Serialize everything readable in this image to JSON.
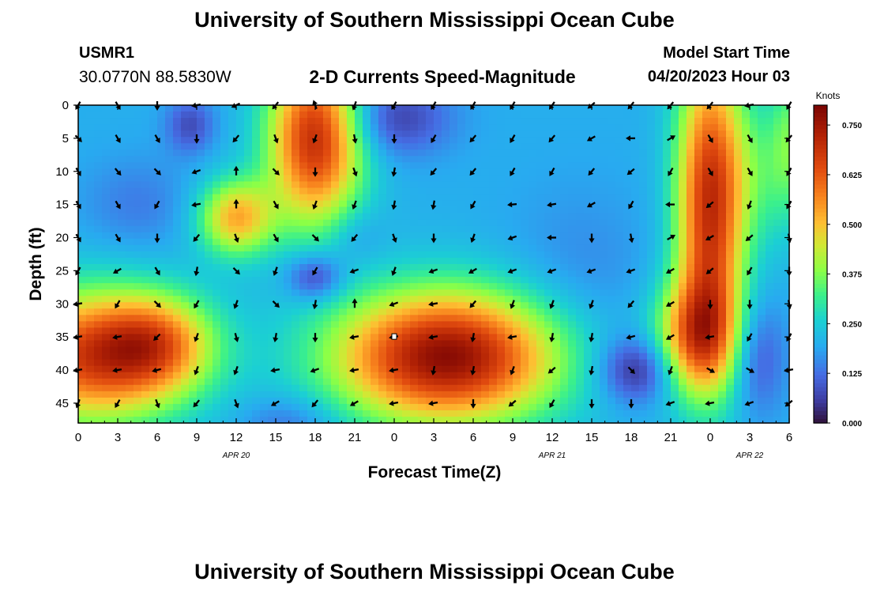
{
  "header": {
    "title": "University of Southern Mississippi Ocean Cube",
    "station_id": "USMR1",
    "station_coords": "30.0770N  88.5830W",
    "plot_title": "2-D Currents Speed-Magnitude",
    "model_start_label": "Model Start Time",
    "model_start_time": "04/20/2023 Hour 03"
  },
  "footer": {
    "title": "University of Southern Mississippi Ocean Cube"
  },
  "chart_data": {
    "type": "heatmap",
    "title": "2-D Currents Speed-Magnitude",
    "xlabel": "Forecast Time(Z)",
    "ylabel": "Depth (ft)",
    "xlim": [
      0,
      54
    ],
    "ylim": [
      0,
      48
    ],
    "x_tick_values": [
      0,
      3,
      6,
      9,
      12,
      15,
      18,
      21,
      24,
      27,
      30,
      33,
      36,
      39,
      42,
      45,
      48,
      51,
      54
    ],
    "x_tick_labels": [
      "0",
      "3",
      "6",
      "9",
      "12",
      "15",
      "18",
      "21",
      "0",
      "3",
      "6",
      "9",
      "12",
      "15",
      "18",
      "21",
      "0",
      "3",
      "6"
    ],
    "y_tick_values": [
      0,
      5,
      10,
      15,
      20,
      25,
      30,
      35,
      40,
      45
    ],
    "y_tick_labels": [
      "0",
      "5",
      "10",
      "15",
      "20",
      "25",
      "30",
      "35",
      "40",
      "45"
    ],
    "date_labels": [
      {
        "label": "APR 20",
        "x": 12
      },
      {
        "label": "APR 21",
        "x": 36
      },
      {
        "label": "APR 22",
        "x": 51
      }
    ],
    "colorbar": {
      "label": "Knots",
      "range": [
        0,
        0.8
      ],
      "ticks": [
        0.0,
        0.125,
        0.25,
        0.375,
        0.5,
        0.625,
        0.75
      ],
      "tick_labels": [
        "0.000",
        "0.125",
        "0.250",
        "0.375",
        "0.500",
        "0.625",
        "0.750"
      ]
    },
    "speed_features": [
      {
        "x": 1,
        "depth": 38,
        "sx": 5,
        "sy": 7,
        "value": 0.45
      },
      {
        "x": 6,
        "depth": 36,
        "sx": 3,
        "sy": 5,
        "value": 0.25
      },
      {
        "x": 18,
        "depth": 5,
        "sx": 2.5,
        "sy": 9,
        "value": 0.5
      },
      {
        "x": 12,
        "depth": 17,
        "sx": 2,
        "sy": 4,
        "value": 0.32
      },
      {
        "x": 28,
        "depth": 38,
        "sx": 6,
        "sy": 7,
        "value": 0.58
      },
      {
        "x": 48,
        "depth": 15,
        "sx": 1.8,
        "sy": 16,
        "value": 0.5
      },
      {
        "x": 47,
        "depth": 35,
        "sx": 2.2,
        "sy": 6,
        "value": 0.35
      },
      {
        "x": 52,
        "depth": 10,
        "sx": 2,
        "sy": 8,
        "value": 0.1
      },
      {
        "x": 54,
        "depth": 5,
        "sx": 1,
        "sy": 8,
        "value": 0.12
      },
      {
        "x": 8.5,
        "depth": 3,
        "sx": 1.3,
        "sy": 3,
        "value": -0.12
      },
      {
        "x": 24,
        "depth": 2,
        "sx": 3,
        "sy": 4,
        "value": -0.14
      },
      {
        "x": 42.5,
        "depth": 40,
        "sx": 2,
        "sy": 3.5,
        "value": -0.18
      },
      {
        "x": 18,
        "depth": 26,
        "sx": 1.5,
        "sy": 2.5,
        "value": -0.16
      },
      {
        "x": 51.5,
        "depth": 38,
        "sx": 1.5,
        "sy": 6,
        "value": -0.12
      },
      {
        "x": 16,
        "depth": 48,
        "sx": 2.5,
        "sy": 3,
        "value": -0.08
      },
      {
        "x": 38,
        "depth": 27,
        "sx": 4,
        "sy": 10,
        "value": -0.05
      },
      {
        "x": 4.5,
        "depth": 15,
        "sx": 3,
        "sy": 5,
        "value": -0.06
      },
      {
        "x": 21,
        "depth": 20,
        "sx": 1.5,
        "sy": 3,
        "value": -0.05
      }
    ],
    "base_speed": 0.2,
    "vector_x": [
      0,
      3,
      6,
      9,
      12,
      15,
      18,
      21,
      24,
      27,
      30,
      33,
      36,
      39,
      42,
      45,
      48,
      51,
      54
    ],
    "vector_depths": [
      0,
      5,
      10,
      15,
      20,
      25,
      30,
      35,
      40,
      45
    ],
    "vector_dirs": [
      [
        120,
        60,
        90,
        170,
        155,
        130,
        250,
        110,
        120,
        120,
        120,
        120,
        125,
        140,
        130,
        130,
        130,
        170,
        120
      ],
      [
        45,
        60,
        60,
        90,
        130,
        70,
        110,
        80,
        90,
        120,
        130,
        120,
        130,
        150,
        180,
        330,
        60,
        60,
        130
      ],
      [
        60,
        50,
        45,
        160,
        270,
        45,
        90,
        70,
        100,
        130,
        130,
        120,
        120,
        130,
        140,
        120,
        60,
        60,
        120
      ],
      [
        60,
        60,
        120,
        170,
        270,
        60,
        110,
        110,
        100,
        100,
        120,
        175,
        170,
        150,
        120,
        180,
        140,
        110,
        120
      ],
      [
        60,
        60,
        90,
        130,
        70,
        60,
        45,
        130,
        70,
        90,
        110,
        160,
        180,
        90,
        80,
        330,
        150,
        140,
        80
      ],
      [
        120,
        150,
        60,
        100,
        45,
        110,
        120,
        160,
        110,
        160,
        150,
        160,
        160,
        160,
        160,
        150,
        140,
        120,
        90
      ],
      [
        170,
        120,
        45,
        120,
        110,
        45,
        100,
        270,
        160,
        170,
        130,
        110,
        110,
        110,
        130,
        150,
        90,
        90,
        80
      ],
      [
        170,
        170,
        135,
        110,
        75,
        100,
        90,
        170,
        170,
        170,
        100,
        170,
        100,
        100,
        165,
        150,
        170,
        120,
        120
      ],
      [
        170,
        170,
        165,
        110,
        110,
        170,
        160,
        170,
        170,
        100,
        100,
        110,
        140,
        100,
        45,
        110,
        30,
        30,
        170
      ],
      [
        110,
        120,
        70,
        130,
        70,
        150,
        130,
        150,
        170,
        170,
        90,
        140,
        120,
        90,
        90,
        160,
        170,
        160,
        140
      ]
    ]
  }
}
